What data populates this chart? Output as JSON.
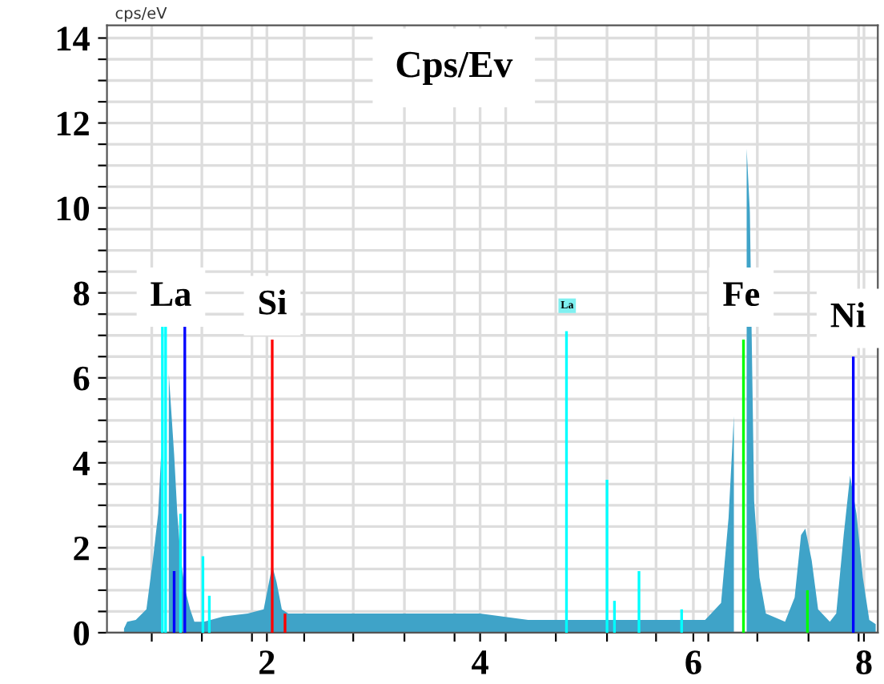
{
  "chart_data": {
    "type": "area",
    "title": "Cps/Ev",
    "ylabel": "cps/eV",
    "xlim": [
      0.5,
      7.73
    ],
    "ylim": [
      0,
      14.3
    ],
    "xticks": [
      {
        "value": 0.92,
        "label": null
      },
      {
        "value": 1.39,
        "label": null
      },
      {
        "value": 1.86,
        "label": null
      },
      2,
      {
        "value": 2.35,
        "label": null
      },
      {
        "value": 2.81,
        "label": null
      },
      {
        "value": 3.29,
        "label": null
      },
      {
        "value": 3.76,
        "label": null
      },
      4,
      {
        "value": 4.24,
        "label": null
      },
      {
        "value": 4.71,
        "label": null
      },
      {
        "value": 5.19,
        "label": null
      },
      {
        "value": 5.65,
        "label": null
      },
      6,
      {
        "value": 6.14,
        "label": null
      },
      {
        "value": 6.6,
        "label": null
      },
      {
        "value": 7.08,
        "label": null
      },
      {
        "value": 7.55,
        "label": null
      },
      {
        "value": 7.6,
        "label": "8"
      }
    ],
    "yticks": [
      0,
      {
        "value": 0.5,
        "label": null
      },
      {
        "value": 1,
        "label": null
      },
      {
        "value": 1.5,
        "label": null
      },
      2,
      {
        "value": 2.5,
        "label": null
      },
      {
        "value": 3,
        "label": null
      },
      {
        "value": 3.5,
        "label": null
      },
      4,
      {
        "value": 4.5,
        "label": null
      },
      {
        "value": 5,
        "label": null
      },
      {
        "value": 5.5,
        "label": null
      },
      6,
      {
        "value": 6.5,
        "label": null
      },
      {
        "value": 7,
        "label": null
      },
      {
        "value": 7.5,
        "label": null
      },
      8,
      {
        "value": 8.5,
        "label": null
      },
      {
        "value": 9,
        "label": null
      },
      {
        "value": 9.5,
        "label": null
      },
      10,
      {
        "value": 10.5,
        "label": null
      },
      {
        "value": 11,
        "label": null
      },
      {
        "value": 11.5,
        "label": null
      },
      12,
      {
        "value": 12.5,
        "label": null
      },
      {
        "value": 13,
        "label": null
      },
      {
        "value": 13.5,
        "label": null
      },
      14
    ],
    "grid": true,
    "legend": false,
    "series": [
      {
        "color": "#3fa3c8",
        "x": [
          0.66,
          0.69,
          0.77,
          0.87,
          0.93,
          0.98,
          1.01,
          1.04,
          1.08,
          1.13,
          1.16,
          1.19,
          1.23,
          1.28,
          1.32,
          1.41,
          1.59,
          1.82,
          1.97,
          2.05,
          2.09,
          2.14,
          2.2,
          3.25,
          4.0,
          4.45,
          5.5,
          6.11,
          6.26,
          6.33,
          6.38,
          6.42,
          6.45,
          6.5,
          6.53,
          6.57,
          6.62,
          6.68,
          6.86,
          6.95,
          7.01,
          7.05,
          7.11,
          7.17,
          7.28,
          7.34,
          7.41,
          7.47,
          7.53,
          7.59,
          7.65,
          7.71
        ],
        "values": [
          0.1,
          0.26,
          0.3,
          0.55,
          1.7,
          2.8,
          4.3,
          null,
          6.1,
          4.2,
          2.8,
          1.8,
          1.05,
          0.55,
          0.26,
          0.26,
          0.38,
          0.45,
          0.55,
          1.58,
          1.2,
          0.55,
          0.45,
          0.45,
          0.45,
          0.3,
          0.3,
          0.3,
          0.7,
          2.7,
          5.1,
          null,
          null,
          11.4,
          9.9,
          3.1,
          1.3,
          0.45,
          0.26,
          0.83,
          2.3,
          2.45,
          1.7,
          0.55,
          0.26,
          0.45,
          2.3,
          3.7,
          2.8,
          1.3,
          0.3,
          0.2
        ]
      },
      {
        "type": "bar",
        "color": "#00ffff",
        "x": [
          1.02,
          1.05,
          1.19,
          1.4,
          1.46,
          4.81,
          5.19,
          5.26,
          5.49,
          5.89
        ],
        "values": [
          7.2,
          7.2,
          2.8,
          1.8,
          0.87,
          7.1,
          3.6,
          0.75,
          1.45,
          0.55
        ]
      },
      {
        "type": "bar",
        "color": "#0000ff",
        "x": [
          1.13,
          1.23,
          7.5
        ],
        "values": [
          1.45,
          7.2,
          6.5
        ]
      },
      {
        "type": "bar",
        "color": "#ff0000",
        "x": [
          2.05,
          2.17
        ],
        "values": [
          6.9,
          0.45
        ]
      },
      {
        "type": "bar",
        "color": "#00ff00",
        "x": [
          6.47,
          7.07
        ],
        "values": [
          6.9,
          1.0
        ]
      }
    ],
    "annotations": [
      {
        "text": "La",
        "x": 1.1,
        "y": 7.9
      },
      {
        "text": "Si",
        "x": 2.05,
        "y": 7.7
      },
      "La",
      {
        "text": "Fe",
        "x": 6.45,
        "y": 7.9
      },
      {
        "text": "Ni",
        "x": 7.45,
        "y": 7.4
      }
    ]
  }
}
